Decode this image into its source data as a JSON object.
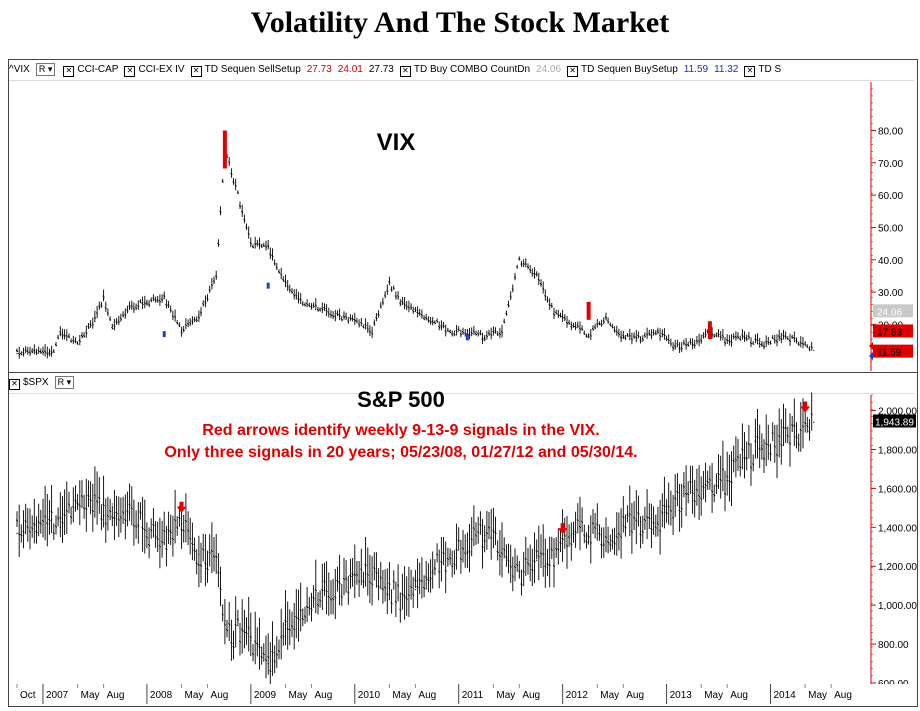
{
  "title": "Volatility And The Stock Market",
  "vix_legend": {
    "symbol": "^VIX",
    "r_label": "R",
    "items": [
      {
        "label": "CCI-CAP",
        "values": []
      },
      {
        "label": "CCI-EX IV",
        "values": []
      },
      {
        "label": "TD Sequen SellSetup",
        "values": [
          {
            "v": "27.73",
            "c": "red"
          },
          {
            "v": "24.01",
            "c": "red"
          },
          {
            "v": "27.73",
            "c": "black"
          }
        ]
      },
      {
        "label": "TD Buy COMBO CountDn",
        "values": [
          {
            "v": "24.06",
            "c": "gray"
          }
        ]
      },
      {
        "label": "TD Sequen BuySetup",
        "values": [
          {
            "v": "11.59",
            "c": "blue"
          },
          {
            "v": "11.32",
            "c": "blue"
          }
        ]
      },
      {
        "label": "TD S",
        "values": []
      }
    ]
  },
  "spx_legend": {
    "symbol": "$SPX",
    "r_label": "R"
  },
  "chart_data": [
    {
      "type": "line",
      "title": "VIX",
      "y_ticks": [
        "80.00",
        "70.00",
        "60.00",
        "50.00",
        "40.00",
        "30.00",
        "20.00"
      ],
      "ylim": [
        9,
        95
      ],
      "grid": false,
      "price_labels": [
        {
          "text": "24.06",
          "value": 24.06,
          "color": "#c8c8c8"
        },
        {
          "text": "17.83",
          "value": 17.83,
          "color": "#e00000"
        },
        {
          "text": "11.59",
          "value": 11.59,
          "color": "#e00000"
        }
      ],
      "x": [
        "2006-10",
        "2006-12",
        "2007-02",
        "2007-03",
        "2007-05",
        "2007-07",
        "2007-08",
        "2007-09",
        "2007-11",
        "2008-01",
        "2008-03",
        "2008-05",
        "2008-07",
        "2008-09",
        "2008-10",
        "2008-11",
        "2008-12",
        "2009-01",
        "2009-03",
        "2009-05",
        "2009-07",
        "2009-09",
        "2009-11",
        "2010-01",
        "2010-03",
        "2010-05",
        "2010-06",
        "2010-08",
        "2010-10",
        "2010-12",
        "2011-02",
        "2011-04",
        "2011-06",
        "2011-08",
        "2011-10",
        "2011-12",
        "2012-02",
        "2012-04",
        "2012-06",
        "2012-08",
        "2012-10",
        "2012-12",
        "2013-02",
        "2013-04",
        "2013-06",
        "2013-08",
        "2013-10",
        "2013-12",
        "2014-02",
        "2014-04",
        "2014-06"
      ],
      "values": [
        11,
        12,
        11,
        17,
        14,
        22,
        28,
        20,
        25,
        27,
        28,
        18,
        23,
        35,
        75,
        65,
        55,
        45,
        44,
        33,
        27,
        25,
        23,
        21,
        18,
        33,
        28,
        24,
        21,
        18,
        18,
        16,
        18,
        40,
        35,
        24,
        20,
        17,
        22,
        16,
        16,
        18,
        13,
        14,
        18,
        15,
        16,
        14,
        16,
        15,
        12
      ],
      "markers": [
        {
          "x": "2008-10",
          "value": 80,
          "color": "#e00000",
          "kind": "sell-setup"
        },
        {
          "x": "2012-04",
          "value": 27,
          "color": "#e00000",
          "kind": "sell-setup"
        },
        {
          "x": "2013-06",
          "value": 21,
          "color": "#e00000",
          "kind": "sell-setup"
        },
        {
          "x": "2008-03",
          "value": 17,
          "color": "#2040c0",
          "kind": "buy-setup"
        },
        {
          "x": "2009-03",
          "value": 32,
          "color": "#2040c0",
          "kind": "buy-setup"
        },
        {
          "x": "2011-02",
          "value": 16,
          "color": "#2040c0",
          "kind": "buy-setup"
        }
      ]
    },
    {
      "type": "line",
      "title": "S&P 500",
      "annotation_lines": [
        "Red arrows identify weekly 9-13-9 signals in the VIX.",
        "Only three signals in 20 years; 05/23/08, 01/27/12 and 05/30/14."
      ],
      "y_ticks": [
        "2,000.00",
        "1,800.00",
        "1,600.00",
        "1,400.00",
        "1,200.00",
        "1,000.00",
        "800.00",
        "600.00"
      ],
      "ylim": [
        600,
        2080
      ],
      "grid": false,
      "last_label": {
        "text": "1,943.89",
        "value": 1943.89
      },
      "x": [
        "2006-10",
        "2006-12",
        "2007-02",
        "2007-03",
        "2007-05",
        "2007-07",
        "2007-08",
        "2007-09",
        "2007-11",
        "2008-01",
        "2008-03",
        "2008-05",
        "2008-07",
        "2008-09",
        "2008-10",
        "2008-11",
        "2008-12",
        "2009-01",
        "2009-03",
        "2009-05",
        "2009-07",
        "2009-09",
        "2009-11",
        "2010-01",
        "2010-03",
        "2010-05",
        "2010-06",
        "2010-08",
        "2010-10",
        "2010-12",
        "2011-02",
        "2011-04",
        "2011-06",
        "2011-08",
        "2011-10",
        "2011-12",
        "2012-02",
        "2012-04",
        "2012-06",
        "2012-08",
        "2012-10",
        "2012-12",
        "2013-02",
        "2013-04",
        "2013-06",
        "2013-08",
        "2013-10",
        "2013-12",
        "2014-02",
        "2014-04",
        "2014-06"
      ],
      "values": [
        1370,
        1410,
        1440,
        1400,
        1510,
        1550,
        1460,
        1520,
        1470,
        1380,
        1320,
        1420,
        1260,
        1250,
        920,
        850,
        880,
        820,
        700,
        900,
        980,
        1060,
        1100,
        1120,
        1160,
        1090,
        1040,
        1080,
        1180,
        1260,
        1330,
        1360,
        1290,
        1150,
        1230,
        1260,
        1360,
        1400,
        1330,
        1410,
        1430,
        1430,
        1510,
        1590,
        1620,
        1640,
        1750,
        1820,
        1840,
        1870,
        1940
      ],
      "arrows": [
        {
          "x": "2008-05",
          "value": 1470
        },
        {
          "x": "2012-01",
          "value": 1360
        },
        {
          "x": "2014-05",
          "value": 1985
        }
      ]
    }
  ],
  "x_axis": {
    "labels": [
      {
        "text": "Oct",
        "x": "2006-10",
        "major": false
      },
      {
        "text": "2007",
        "x": "2007-01",
        "major": true
      },
      {
        "text": "May",
        "x": "2007-05",
        "major": false
      },
      {
        "text": "Aug",
        "x": "2007-08",
        "major": false
      },
      {
        "text": "2008",
        "x": "2008-01",
        "major": true
      },
      {
        "text": "May",
        "x": "2008-05",
        "major": false
      },
      {
        "text": "Aug",
        "x": "2008-08",
        "major": false
      },
      {
        "text": "2009",
        "x": "2009-01",
        "major": true
      },
      {
        "text": "May",
        "x": "2009-05",
        "major": false
      },
      {
        "text": "Aug",
        "x": "2009-08",
        "major": false
      },
      {
        "text": "2010",
        "x": "2010-01",
        "major": true
      },
      {
        "text": "May",
        "x": "2010-05",
        "major": false
      },
      {
        "text": "Aug",
        "x": "2010-08",
        "major": false
      },
      {
        "text": "2011",
        "x": "2011-01",
        "major": true
      },
      {
        "text": "May",
        "x": "2011-05",
        "major": false
      },
      {
        "text": "Aug",
        "x": "2011-08",
        "major": false
      },
      {
        "text": "2012",
        "x": "2012-01",
        "major": true
      },
      {
        "text": "May",
        "x": "2012-05",
        "major": false
      },
      {
        "text": "Aug",
        "x": "2012-08",
        "major": false
      },
      {
        "text": "2013",
        "x": "2013-01",
        "major": true
      },
      {
        "text": "May",
        "x": "2013-05",
        "major": false
      },
      {
        "text": "Aug",
        "x": "2013-08",
        "major": false
      },
      {
        "text": "2014",
        "x": "2014-01",
        "major": true
      },
      {
        "text": "May",
        "x": "2014-05",
        "major": false
      },
      {
        "text": "Aug",
        "x": "2014-08",
        "major": false
      }
    ]
  },
  "colors": {
    "axis": "#e00000",
    "series": "#000000",
    "annotation": "#e00000",
    "signal_arrow": "#e00000"
  }
}
